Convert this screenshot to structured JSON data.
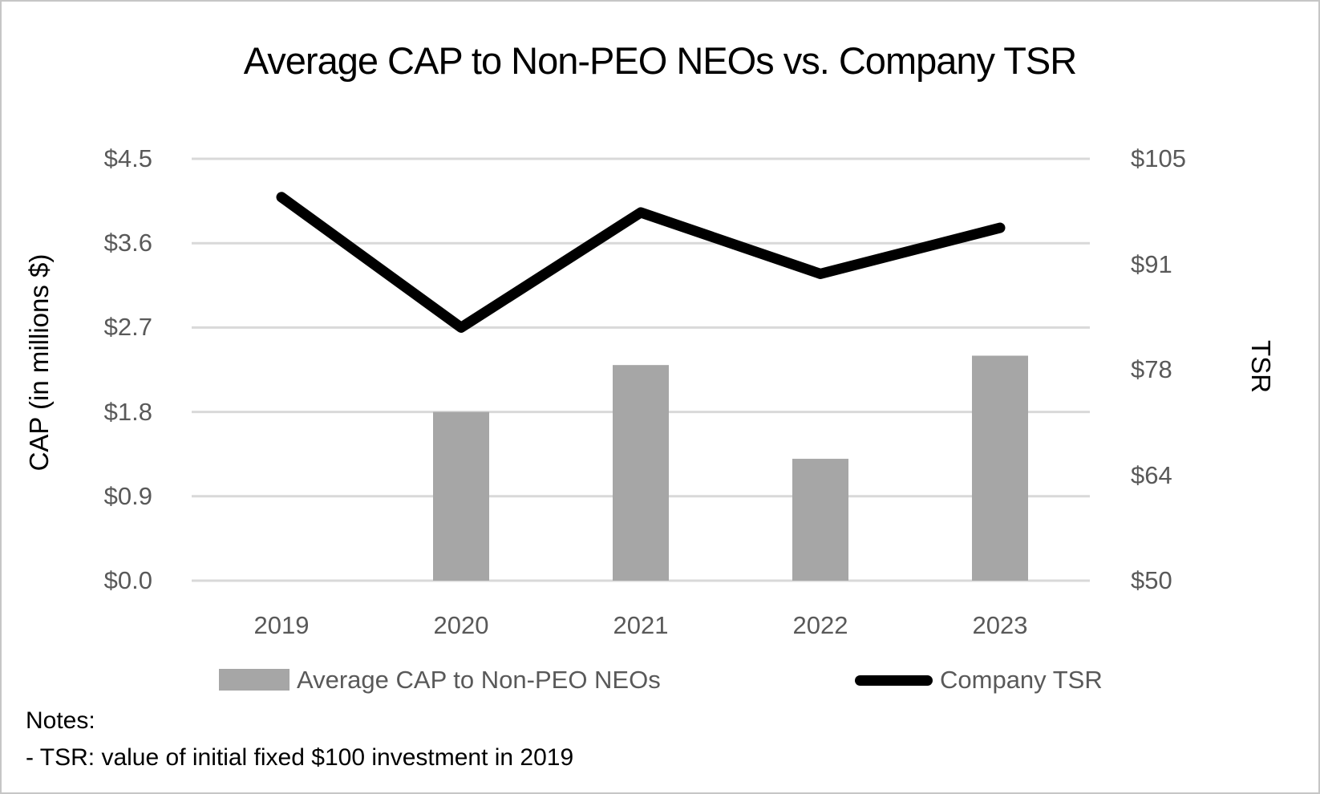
{
  "title": "Average CAP to Non-PEO NEOs vs. Company TSR",
  "chart_data": {
    "type": "combo-bar-line",
    "categories": [
      "2019",
      "2020",
      "2021",
      "2022",
      "2023"
    ],
    "series": [
      {
        "name": "Average CAP to Non-PEO NEOs",
        "type": "bar",
        "axis": "left",
        "color": "#A6A6A6",
        "values": [
          null,
          1.8,
          2.3,
          1.3,
          2.4
        ]
      },
      {
        "name": "Company TSR",
        "type": "line",
        "axis": "right",
        "color": "#000000",
        "values": [
          100,
          83,
          98,
          90,
          96
        ]
      }
    ],
    "left_axis": {
      "title": "CAP (in millions $)",
      "min": 0,
      "max": 4.5,
      "tick_labels": [
        "$0.0",
        "$0.9",
        "$1.8",
        "$2.7",
        "$3.6",
        "$4.5"
      ]
    },
    "right_axis": {
      "title": "TSR",
      "min": 50,
      "max": 105,
      "tick_labels": [
        "$50",
        "$64",
        "$78",
        "$91",
        "$105"
      ]
    },
    "grid": true,
    "gridline_color": "#D9D9D9",
    "legend_position": "bottom"
  },
  "legend": {
    "bar_label": "Average CAP to Non-PEO NEOs",
    "line_label": "Company TSR"
  },
  "notes": {
    "heading": "Notes:",
    "line1": "- TSR: value of initial fixed $100 investment in 2019"
  }
}
